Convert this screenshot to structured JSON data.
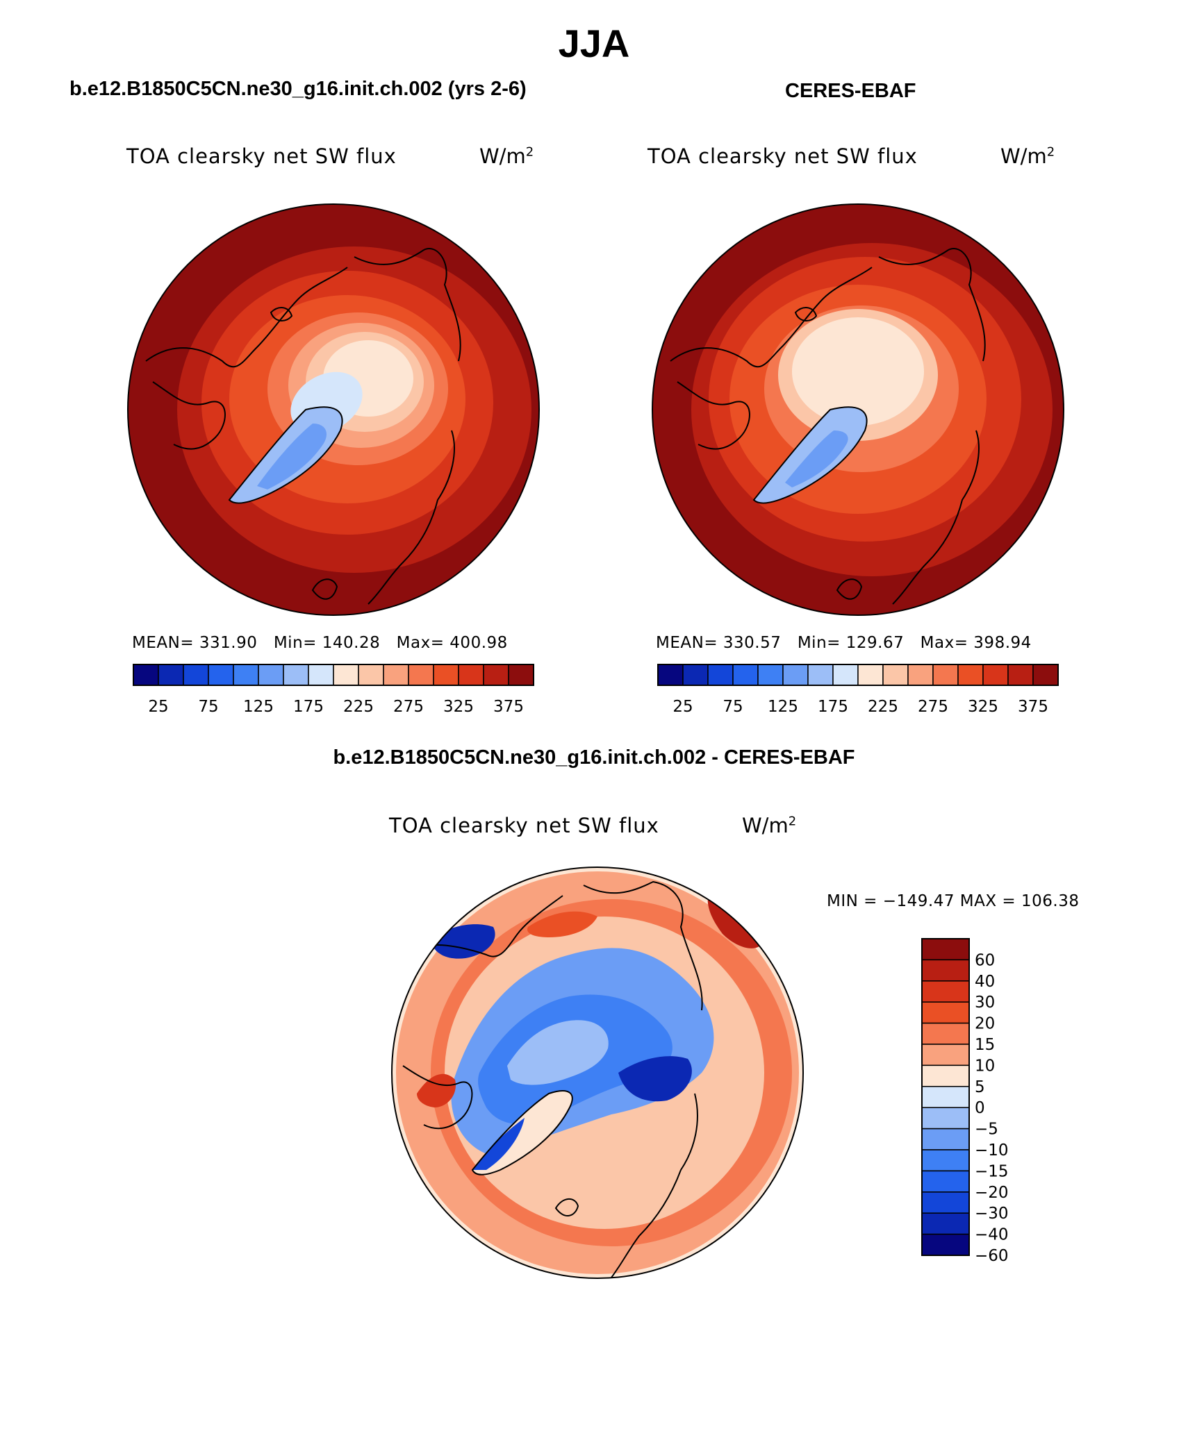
{
  "page": {
    "title": "JJA"
  },
  "panels": [
    {
      "title": "b.e12.B1850C5CN.ne30_g16.init.ch.002 (yrs 2-6)",
      "variable": "TOA clearsky net SW flux",
      "units": "W/m",
      "units_exponent": "2",
      "stats": {
        "mean_label": "MEAN=",
        "mean": "331.90",
        "min_label": "Min=",
        "min": "140.28",
        "max_label": "Max=",
        "max": "400.98"
      }
    },
    {
      "title": "CERES-EBAF",
      "variable": "TOA clearsky net SW flux",
      "units": "W/m",
      "units_exponent": "2",
      "stats": {
        "mean_label": "MEAN=",
        "mean": "330.57",
        "min_label": "Min=",
        "min": "129.67",
        "max_label": "Max=",
        "max": "398.94"
      }
    }
  ],
  "diff_panel": {
    "title": "b.e12.B1850C5CN.ne30_g16.init.ch.002 - CERES-EBAF",
    "variable": "TOA clearsky net SW flux",
    "units": "W/m",
    "units_exponent": "2",
    "minmax": "MIN = −149.47 MAX = 106.38"
  },
  "abs_colorbar": {
    "colors": [
      "#06067f",
      "#0b28b3",
      "#1346d9",
      "#2463ed",
      "#3e80f4",
      "#6b9df5",
      "#9cbef7",
      "#d5e6fb",
      "#fde6d4",
      "#fbc6a8",
      "#f9a27e",
      "#f4774f",
      "#ea5025",
      "#d8351a",
      "#b81f13",
      "#8c0d0d"
    ],
    "tick_labels": [
      "25",
      "75",
      "125",
      "175",
      "225",
      "275",
      "325",
      "375"
    ]
  },
  "diff_colorbar": {
    "colors": [
      "#8c0d0d",
      "#b81f13",
      "#d8351a",
      "#ea5025",
      "#f4774f",
      "#f9a27e",
      "#fde6d4",
      "#d5e6fb",
      "#9cbef7",
      "#6b9df5",
      "#3e80f4",
      "#2463ed",
      "#1346d9",
      "#0b28b3",
      "#06067f"
    ],
    "tick_labels": [
      "60",
      "40",
      "30",
      "20",
      "15",
      "10",
      "5",
      "0",
      "−5",
      "−10",
      "−15",
      "−20",
      "−30",
      "−40",
      "−60"
    ]
  }
}
